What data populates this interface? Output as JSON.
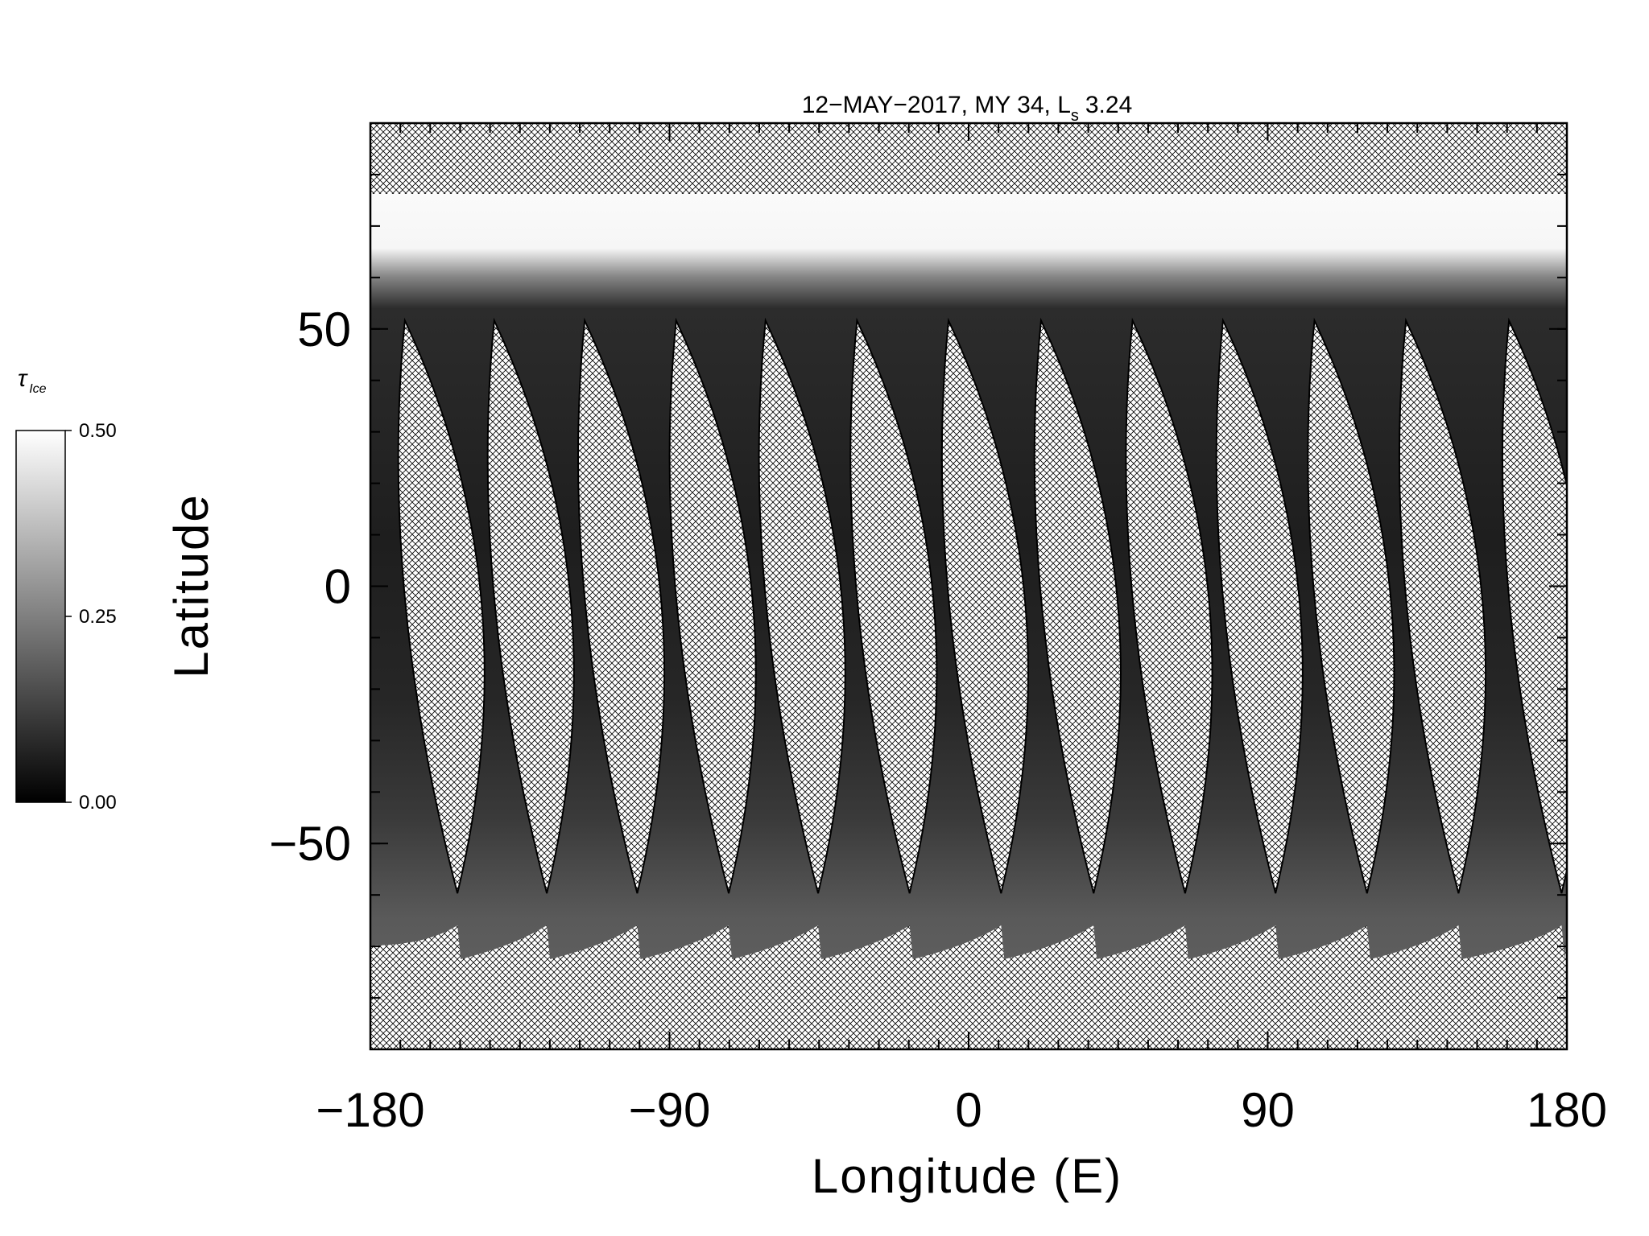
{
  "chart_data": {
    "type": "map",
    "title": {
      "date": "12−MAY−2017,",
      "mars_year": "MY 34,",
      "ls_symbol": "L",
      "ls_subscript": "s",
      "ls_value": "3.24"
    },
    "xlabel": "Longitude (E)",
    "ylabel": "Latitude",
    "xlim": [
      -180,
      180
    ],
    "ylim": [
      -90,
      90
    ],
    "xticks": [
      {
        "value": -180,
        "label": "−180"
      },
      {
        "value": -90,
        "label": "−90"
      },
      0,
      90,
      180
    ],
    "yticks": [
      {
        "value": -50,
        "label": "−50"
      },
      0,
      50
    ],
    "x_minor_step": 9,
    "y_minor_step": 10,
    "colorbar": {
      "label": "τ",
      "label_subscript": "Ice",
      "lim": [
        0,
        0.5
      ],
      "ticks": [
        {
          "value": 0,
          "label": "0.00"
        },
        {
          "value": 0.25,
          "label": "0.25"
        },
        {
          "value": 0.5,
          "label": "0.50"
        }
      ],
      "colors": [
        "#000000",
        "#ffffff"
      ]
    }
  }
}
